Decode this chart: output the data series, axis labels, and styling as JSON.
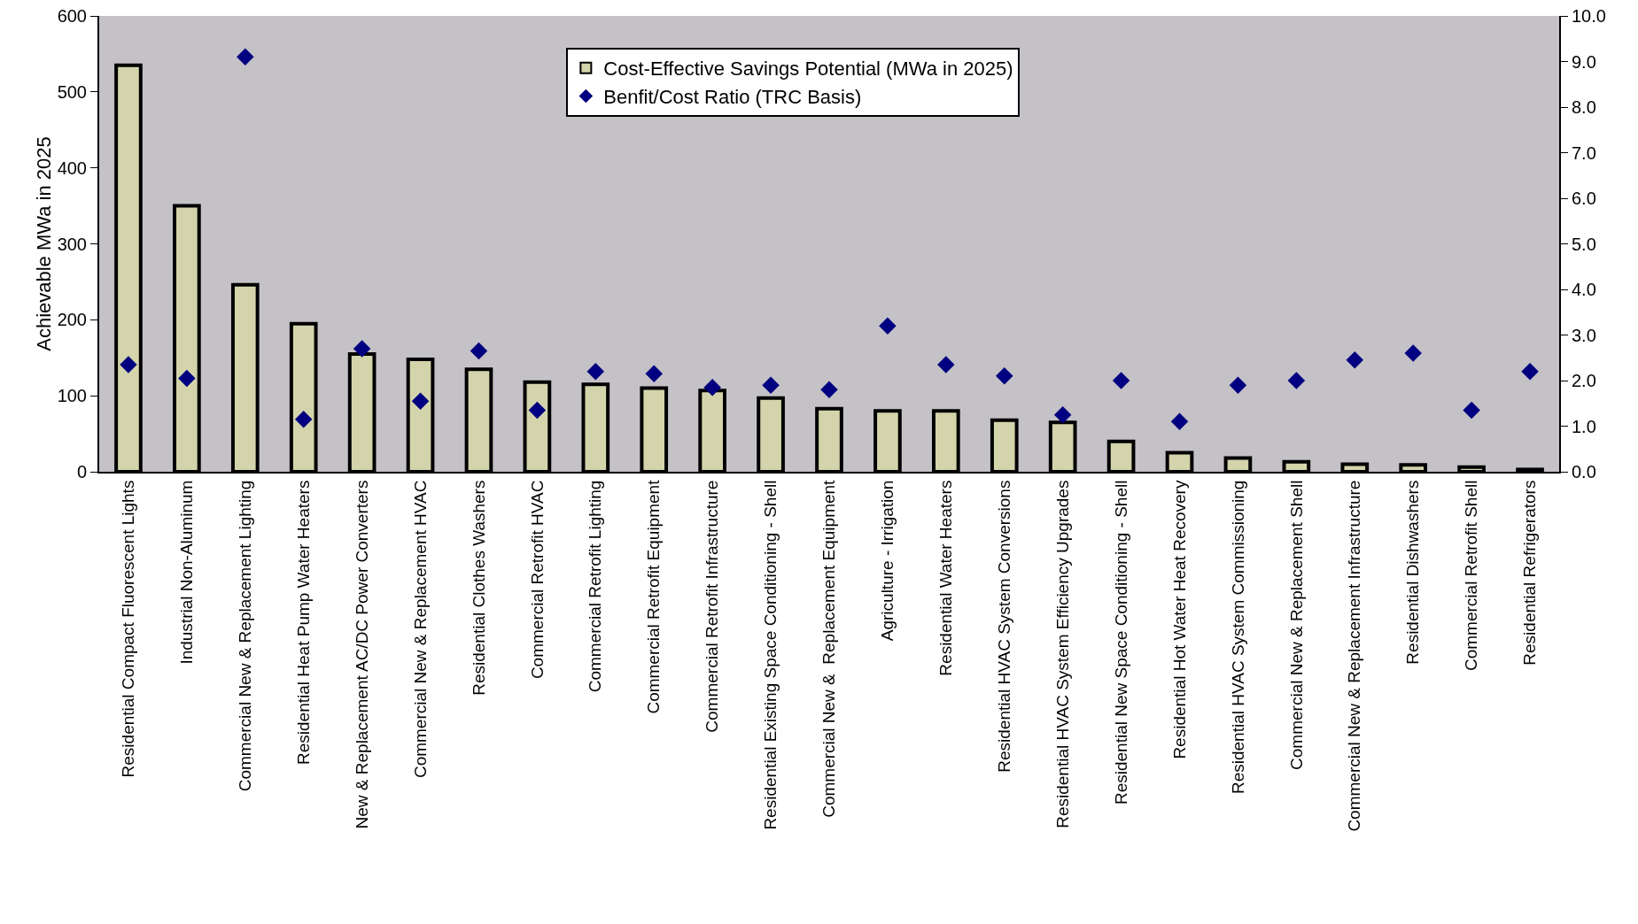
{
  "chart_data": {
    "type": "bar",
    "ylabel": "Achievable MWa in 2025",
    "categories": [
      "Residential Compact Fluorescent Lights",
      "Industrial Non-Aluminum",
      "Commercial New & Replacement Lighting",
      "Residential Heat Pump Water Heaters",
      "New & Replacement AC/DC Power Converters",
      "Commercial New & Replacement HVAC",
      "Residential Clothes Washers",
      "Commercial Retrofit HVAC",
      "Commercial Retrofit Lighting",
      "Commercial Retrofit Equipment",
      "Commercial Retrofit Infrastructure",
      "Residential Existing Space Conditioning - Shell",
      "Commercial New &  Replacement Equipment",
      "Agriculture - Irrigation",
      "Residential Water Heaters",
      "Residential HVAC System Conversions",
      "Residential HVAC System Efficiency Upgrades",
      "Residential New Space Conditioning - Shell",
      "Residential Hot Water Heat Recovery",
      "Residential HVAC System Commissioning",
      "Commercial New & Replacement Shell",
      "Commercial New & Replacement Infrastructure",
      "Residential Dishwashers",
      "Commercial Retrofit Shell",
      "Residential Refrigerators"
    ],
    "series": [
      {
        "name": "Cost-Effective Savings Potential (MWa in 2025)",
        "color": "#d4d4ac",
        "values": [
          535,
          350,
          246,
          195,
          155,
          148,
          135,
          118,
          115,
          110,
          107,
          97,
          83,
          80,
          80,
          68,
          65,
          40,
          25,
          18,
          13,
          10,
          9,
          6,
          3
        ]
      },
      {
        "name": "Benfit/Cost Ratio (TRC Basis)",
        "type": "scatter",
        "axis": "y2",
        "marker": "diamond",
        "color": "#000080",
        "values": [
          2.35,
          2.05,
          9.1,
          1.15,
          2.7,
          1.55,
          2.65,
          1.35,
          2.2,
          2.15,
          1.85,
          1.9,
          1.8,
          3.2,
          2.35,
          2.1,
          1.25,
          2.0,
          1.1,
          1.9,
          2.0,
          2.45,
          2.6,
          1.35,
          2.2
        ]
      }
    ],
    "ylim": [
      0,
      600
    ],
    "yticks": [
      0,
      100,
      200,
      300,
      400,
      500,
      600
    ],
    "y2lim": [
      0,
      10
    ],
    "y2ticks": [
      {
        "value": 0,
        "label": "0.0"
      },
      {
        "value": 1,
        "label": "1.0"
      },
      {
        "value": 2,
        "label": "2.0"
      },
      {
        "value": 3,
        "label": "3.0"
      },
      {
        "value": 4,
        "label": "4.0"
      },
      {
        "value": 5,
        "label": "5.0"
      },
      {
        "value": 6,
        "label": "6.0"
      },
      {
        "value": 7,
        "label": "7.0"
      },
      {
        "value": 8,
        "label": "8.0"
      },
      {
        "value": 9,
        "label": "9.0"
      },
      {
        "value": 10,
        "label": "10.0"
      }
    ],
    "grid": false,
    "legend": "top"
  }
}
